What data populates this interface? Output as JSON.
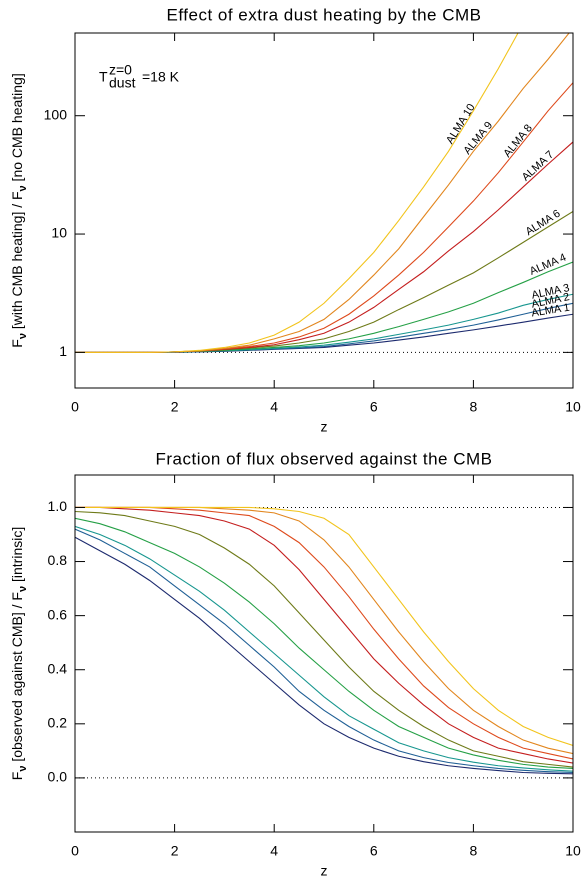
{
  "chart_data": [
    {
      "type": "line",
      "title": "Effect of extra dust heating by the CMB",
      "xlabel": "z",
      "ylabel": [
        "F",
        "ν",
        " [with CMB heating] / F",
        "ν",
        " [no CMB heating]"
      ],
      "annotation": {
        "text": "T",
        "superscript": "z=0",
        "subscript": "dust",
        "suffix": "=18 K"
      },
      "yscale": "log",
      "xlim": [
        0,
        10
      ],
      "xticks": [
        0,
        2,
        4,
        6,
        8,
        10
      ],
      "ylim": [
        0.5,
        500
      ],
      "yticks": [
        1,
        10,
        100
      ],
      "hlines": [
        1
      ],
      "x": [
        0,
        0.5,
        1,
        1.5,
        2,
        2.5,
        3,
        3.5,
        4,
        4.5,
        5,
        5.5,
        6,
        6.5,
        7,
        7.5,
        8,
        8.5,
        9,
        9.5,
        10
      ],
      "series": [
        {
          "name": "ALMA 1",
          "color": "#1c2a6e",
          "values": [
            1,
            1,
            1,
            1,
            1,
            1.01,
            1.02,
            1.04,
            1.06,
            1.08,
            1.1,
            1.15,
            1.2,
            1.27,
            1.35,
            1.45,
            1.55,
            1.67,
            1.8,
            1.95,
            2.1
          ]
        },
        {
          "name": "ALMA 2",
          "color": "#1f5f95",
          "values": [
            1,
            1,
            1,
            1,
            1,
            1.01,
            1.03,
            1.05,
            1.07,
            1.09,
            1.12,
            1.18,
            1.25,
            1.34,
            1.45,
            1.56,
            1.7,
            1.88,
            2.1,
            2.35,
            2.6
          ]
        },
        {
          "name": "ALMA 3",
          "color": "#17968f",
          "values": [
            1,
            1,
            1,
            1,
            1.01,
            1.02,
            1.03,
            1.05,
            1.08,
            1.11,
            1.15,
            1.22,
            1.3,
            1.42,
            1.55,
            1.7,
            1.9,
            2.15,
            2.5,
            2.8,
            3.1
          ]
        },
        {
          "name": "ALMA 4",
          "color": "#25a046",
          "values": [
            1,
            1,
            1,
            1,
            1.01,
            1.02,
            1.04,
            1.07,
            1.1,
            1.14,
            1.2,
            1.3,
            1.45,
            1.65,
            1.9,
            2.2,
            2.6,
            3.2,
            3.9,
            4.8,
            5.8
          ]
        },
        {
          "name": "ALMA 6",
          "color": "#6e7a18",
          "values": [
            1,
            1,
            1,
            1,
            1.01,
            1.02,
            1.05,
            1.09,
            1.13,
            1.2,
            1.3,
            1.5,
            1.8,
            2.3,
            2.9,
            3.7,
            4.7,
            6.3,
            8.5,
            11.5,
            15.5
          ]
        },
        {
          "name": "ALMA 7",
          "color": "#c41e1e",
          "values": [
            1,
            1,
            1,
            1,
            1.01,
            1.03,
            1.06,
            1.1,
            1.16,
            1.28,
            1.45,
            1.8,
            2.4,
            3.4,
            4.8,
            7.2,
            10.5,
            16,
            25,
            39,
            60
          ]
        },
        {
          "name": "ALMA 8",
          "color": "#de4a1c",
          "values": [
            1,
            1,
            1,
            1,
            1.01,
            1.03,
            1.07,
            1.12,
            1.2,
            1.35,
            1.6,
            2.1,
            3,
            4.5,
            7,
            11.5,
            19,
            33,
            60,
            110,
            190
          ]
        },
        {
          "name": "ALMA 9",
          "color": "#e2861e",
          "values": [
            1,
            1,
            1,
            1,
            1.01,
            1.03,
            1.08,
            1.15,
            1.3,
            1.5,
            1.9,
            2.8,
            4.5,
            7.5,
            14,
            26,
            50,
            90,
            170,
            300,
            550
          ]
        },
        {
          "name": "ALMA 10",
          "color": "#f2c41c",
          "values": [
            1,
            1,
            1,
            1,
            1.01,
            1.04,
            1.1,
            1.2,
            1.4,
            1.8,
            2.6,
            4.2,
            7,
            13,
            25,
            50,
            110,
            250,
            600,
            null,
            null
          ]
        }
      ]
    },
    {
      "type": "line",
      "title": "Fraction of flux observed against the CMB",
      "xlabel": "z",
      "ylabel": [
        "F",
        "ν",
        " [observed against CMB] / F",
        "ν",
        " [intrinsic]"
      ],
      "xlim": [
        0,
        10
      ],
      "xticks": [
        0,
        2,
        4,
        6,
        8,
        10
      ],
      "ylim": [
        -0.2,
        1.12
      ],
      "yticks": [
        {
          "value": 0,
          "label": "0.0"
        },
        0.2,
        0.4,
        0.6,
        0.8,
        {
          "value": 1,
          "label": "1.0"
        }
      ],
      "hlines": [
        0,
        1
      ],
      "x": [
        0,
        0.5,
        1,
        1.5,
        2,
        2.5,
        3,
        3.5,
        4,
        4.5,
        5,
        5.5,
        6,
        6.5,
        7,
        7.5,
        8,
        8.5,
        9,
        9.5,
        10
      ],
      "series": [
        {
          "color": "#1c2a6e",
          "values": [
            0.89,
            0.84,
            0.79,
            0.73,
            0.66,
            0.59,
            0.51,
            0.43,
            0.35,
            0.27,
            0.2,
            0.15,
            0.11,
            0.08,
            0.06,
            0.045,
            0.035,
            0.027,
            0.02,
            0.017,
            0.015
          ]
        },
        {
          "color": "#1f5f95",
          "values": [
            0.92,
            0.88,
            0.83,
            0.78,
            0.71,
            0.64,
            0.57,
            0.49,
            0.41,
            0.32,
            0.25,
            0.19,
            0.14,
            0.1,
            0.075,
            0.057,
            0.045,
            0.035,
            0.028,
            0.023,
            0.02
          ]
        },
        {
          "color": "#17968f",
          "values": [
            0.93,
            0.9,
            0.86,
            0.81,
            0.75,
            0.69,
            0.62,
            0.54,
            0.46,
            0.38,
            0.3,
            0.23,
            0.18,
            0.13,
            0.1,
            0.075,
            0.058,
            0.045,
            0.037,
            0.03,
            0.025
          ]
        },
        {
          "color": "#25a046",
          "values": [
            0.96,
            0.94,
            0.91,
            0.87,
            0.83,
            0.78,
            0.72,
            0.65,
            0.57,
            0.48,
            0.4,
            0.32,
            0.25,
            0.19,
            0.15,
            0.11,
            0.085,
            0.065,
            0.05,
            0.04,
            0.035
          ]
        },
        {
          "color": "#6e7a18",
          "values": [
            0.985,
            0.98,
            0.97,
            0.95,
            0.93,
            0.9,
            0.85,
            0.79,
            0.71,
            0.61,
            0.51,
            0.41,
            0.32,
            0.25,
            0.19,
            0.14,
            0.1,
            0.08,
            0.06,
            0.05,
            0.04
          ]
        },
        {
          "color": "#c41e1e",
          "values": [
            1,
            1,
            0.995,
            0.99,
            0.98,
            0.97,
            0.95,
            0.92,
            0.86,
            0.77,
            0.66,
            0.55,
            0.44,
            0.35,
            0.27,
            0.2,
            0.15,
            0.11,
            0.09,
            0.07,
            0.055
          ]
        },
        {
          "color": "#de4a1c",
          "values": [
            1,
            1,
            1,
            1,
            0.995,
            0.99,
            0.98,
            0.97,
            0.93,
            0.87,
            0.78,
            0.67,
            0.55,
            0.44,
            0.34,
            0.26,
            0.2,
            0.15,
            0.11,
            0.09,
            0.07
          ]
        },
        {
          "color": "#e2861e",
          "values": [
            1,
            1,
            1,
            1,
            1,
            1,
            0.995,
            0.99,
            0.98,
            0.95,
            0.88,
            0.78,
            0.66,
            0.54,
            0.43,
            0.33,
            0.25,
            0.19,
            0.14,
            0.11,
            0.09
          ]
        },
        {
          "color": "#f2c41c",
          "values": [
            1,
            1,
            1,
            1,
            1,
            1,
            1,
            1,
            0.995,
            0.985,
            0.96,
            0.9,
            0.78,
            0.66,
            0.54,
            0.43,
            0.33,
            0.25,
            0.19,
            0.15,
            0.12
          ]
        }
      ]
    }
  ]
}
